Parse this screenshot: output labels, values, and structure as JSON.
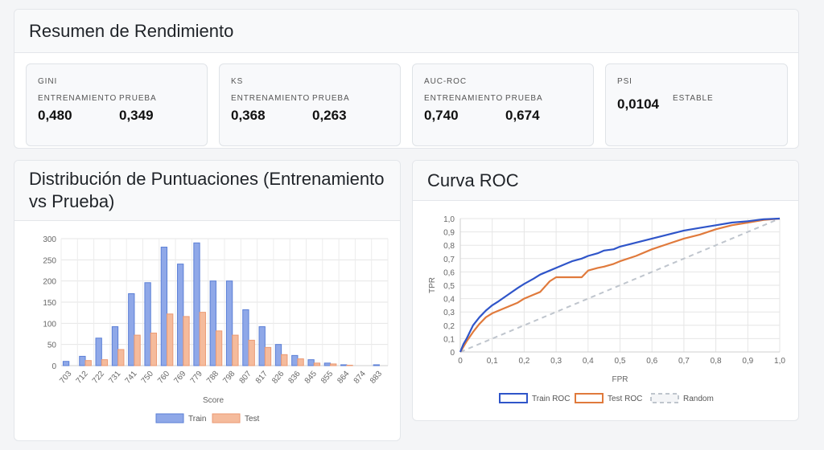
{
  "summary": {
    "title": "Resumen de Rendimiento",
    "metrics": [
      {
        "label": "GINI",
        "train_label": "ENTRENAMIENTO",
        "test_label": "PRUEBA",
        "train": "0,480",
        "test": "0,349"
      },
      {
        "label": "KS",
        "train_label": "ENTRENAMIENTO",
        "test_label": "PRUEBA",
        "train": "0,368",
        "test": "0,263"
      },
      {
        "label": "AUC-ROC",
        "train_label": "ENTRENAMIENTO",
        "test_label": "PRUEBA",
        "train": "0,740",
        "test": "0,674"
      },
      {
        "label": "PSI",
        "value": "0,0104",
        "status": "ESTABLE"
      }
    ]
  },
  "distribution": {
    "title": "Distribución de Puntuaciones (Entrenamiento vs Prueba)"
  },
  "roc": {
    "title": "Curva ROC"
  },
  "chart_data": [
    {
      "type": "bar",
      "title": "",
      "xlabel": "Score",
      "ylabel": "",
      "ylim": [
        0,
        300
      ],
      "yticks": [
        0,
        50,
        100,
        150,
        200,
        250,
        300
      ],
      "categories": [
        "703",
        "712",
        "722",
        "731",
        "741",
        "750",
        "760",
        "769",
        "779",
        "788",
        "798",
        "807",
        "817",
        "826",
        "836",
        "845",
        "855",
        "864",
        "874",
        "883"
      ],
      "series": [
        {
          "name": "Train",
          "color": "#8fa8e8",
          "border": "#5b7fd6",
          "values": [
            10,
            22,
            65,
            92,
            170,
            196,
            280,
            240,
            290,
            200,
            200,
            132,
            92,
            50,
            24,
            14,
            6,
            2,
            0,
            2
          ]
        },
        {
          "name": "Test",
          "color": "#f5bb9c",
          "border": "#eb9a73",
          "values": [
            0,
            12,
            14,
            38,
            72,
            77,
            122,
            116,
            126,
            82,
            72,
            60,
            43,
            26,
            16,
            6,
            4,
            1,
            0,
            0
          ]
        }
      ],
      "grid": true,
      "legend": "bottom"
    },
    {
      "type": "line",
      "title": "",
      "xlabel": "FPR",
      "ylabel": "TPR",
      "xlim": [
        0,
        1
      ],
      "ylim": [
        0,
        1
      ],
      "xticks": [
        "0",
        "0,1",
        "0,2",
        "0,3",
        "0,4",
        "0,5",
        "0,6",
        "0,7",
        "0,8",
        "0,9",
        "1,0"
      ],
      "yticks": [
        "0",
        "0,1",
        "0,2",
        "0,3",
        "0,4",
        "0,5",
        "0,6",
        "0,7",
        "0,8",
        "0,9",
        "1,0"
      ],
      "series": [
        {
          "name": "Train ROC",
          "color": "#2f55c9",
          "dash": false,
          "x": [
            0,
            0.01,
            0.02,
            0.04,
            0.06,
            0.08,
            0.1,
            0.12,
            0.15,
            0.18,
            0.2,
            0.23,
            0.25,
            0.28,
            0.3,
            0.33,
            0.35,
            0.38,
            0.4,
            0.43,
            0.45,
            0.48,
            0.5,
            0.55,
            0.6,
            0.65,
            0.7,
            0.75,
            0.8,
            0.85,
            0.9,
            0.95,
            1.0
          ],
          "y": [
            0,
            0.06,
            0.1,
            0.2,
            0.26,
            0.31,
            0.35,
            0.38,
            0.43,
            0.48,
            0.51,
            0.55,
            0.58,
            0.61,
            0.63,
            0.66,
            0.68,
            0.7,
            0.72,
            0.74,
            0.76,
            0.77,
            0.79,
            0.82,
            0.85,
            0.88,
            0.91,
            0.93,
            0.95,
            0.97,
            0.98,
            0.995,
            1.0
          ]
        },
        {
          "name": "Test ROC",
          "color": "#e07a3c",
          "dash": false,
          "x": [
            0,
            0.01,
            0.02,
            0.04,
            0.06,
            0.08,
            0.1,
            0.13,
            0.15,
            0.18,
            0.2,
            0.23,
            0.25,
            0.28,
            0.3,
            0.33,
            0.35,
            0.38,
            0.4,
            0.43,
            0.45,
            0.48,
            0.5,
            0.55,
            0.6,
            0.65,
            0.7,
            0.75,
            0.8,
            0.85,
            0.9,
            0.95,
            1.0
          ],
          "y": [
            0,
            0.04,
            0.08,
            0.15,
            0.21,
            0.26,
            0.29,
            0.32,
            0.34,
            0.37,
            0.4,
            0.43,
            0.45,
            0.53,
            0.56,
            0.56,
            0.56,
            0.56,
            0.61,
            0.63,
            0.64,
            0.66,
            0.68,
            0.72,
            0.77,
            0.81,
            0.85,
            0.88,
            0.92,
            0.95,
            0.97,
            0.99,
            1.0
          ]
        },
        {
          "name": "Random",
          "color": "#bfc5cd",
          "dash": true,
          "x": [
            0,
            1
          ],
          "y": [
            0,
            1
          ]
        }
      ],
      "grid": true,
      "legend": "bottom"
    }
  ]
}
